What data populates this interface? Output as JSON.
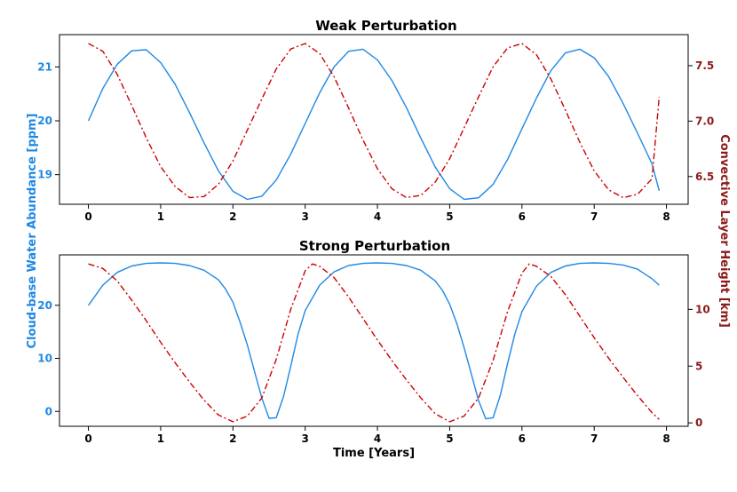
{
  "colors": {
    "left": "#1e88e5",
    "right": "#cc0000",
    "right_label": "#8b1a1a",
    "axis": "#000000"
  },
  "figure": {
    "ylabel_left": "Cloud-base Water Abundance [ppm]",
    "ylabel_right": "Convective Layer Height [km]",
    "xlabel": "Time [Years]"
  },
  "chart_data": [
    {
      "type": "line",
      "title": "Weak Perturbation",
      "xlim": [
        -0.4,
        8.3
      ],
      "x_ticks": [
        0,
        1,
        2,
        3,
        4,
        5,
        6,
        7,
        8
      ],
      "ylim_left": [
        18.45,
        21.6
      ],
      "y_ticks_left": [
        19,
        20,
        21
      ],
      "ylim_right": [
        6.25,
        7.78
      ],
      "y_ticks_right": [
        6.5,
        7.0,
        7.5
      ],
      "y_tick_labels_right": [
        "6.5",
        "7.0",
        "7.5"
      ],
      "series": [
        {
          "axis": "left",
          "style": "solid",
          "x": [
            0,
            0.2,
            0.4,
            0.6,
            0.8,
            1.0,
            1.2,
            1.4,
            1.6,
            1.8,
            2.0,
            2.2,
            2.4,
            2.6,
            2.8,
            3.0,
            3.2,
            3.4,
            3.6,
            3.8,
            4.0,
            4.2,
            4.4,
            4.6,
            4.8,
            5.0,
            5.2,
            5.4,
            5.6,
            5.8,
            6.0,
            6.2,
            6.4,
            6.6,
            6.8,
            7.0,
            7.2,
            7.4,
            7.6,
            7.8,
            7.9
          ],
          "y": [
            20.0,
            20.6,
            21.05,
            21.3,
            21.32,
            21.08,
            20.68,
            20.15,
            19.59,
            19.07,
            18.69,
            18.54,
            18.6,
            18.9,
            19.38,
            19.95,
            20.52,
            21.0,
            21.29,
            21.33,
            21.13,
            20.75,
            20.25,
            19.68,
            19.14,
            18.74,
            18.54,
            18.57,
            18.82,
            19.28,
            19.85,
            20.42,
            20.93,
            21.26,
            21.33,
            21.17,
            20.82,
            20.32,
            19.77,
            19.2,
            18.7
          ]
        },
        {
          "axis": "right",
          "style": "dashdot",
          "x": [
            0,
            0.2,
            0.4,
            0.6,
            0.8,
            1.0,
            1.2,
            1.4,
            1.6,
            1.8,
            2.0,
            2.2,
            2.4,
            2.6,
            2.8,
            3.0,
            3.2,
            3.4,
            3.6,
            3.8,
            4.0,
            4.2,
            4.4,
            4.6,
            4.8,
            5.0,
            5.2,
            5.4,
            5.6,
            5.8,
            6.0,
            6.2,
            6.4,
            6.6,
            6.8,
            7.0,
            7.2,
            7.4,
            7.6,
            7.8,
            7.9
          ],
          "y": [
            7.7,
            7.63,
            7.42,
            7.14,
            6.85,
            6.59,
            6.41,
            6.31,
            6.32,
            6.43,
            6.64,
            6.92,
            7.2,
            7.47,
            7.65,
            7.7,
            7.61,
            7.4,
            7.12,
            6.83,
            6.57,
            6.39,
            6.31,
            6.33,
            6.45,
            6.66,
            6.94,
            7.22,
            7.49,
            7.66,
            7.7,
            7.6,
            7.38,
            7.1,
            6.81,
            6.55,
            6.38,
            6.31,
            6.34,
            6.48,
            7.22
          ]
        }
      ]
    },
    {
      "type": "line",
      "title": "Strong Perturbation",
      "xlim": [
        -0.4,
        8.3
      ],
      "x_ticks": [
        0,
        1,
        2,
        3,
        4,
        5,
        6,
        7,
        8
      ],
      "ylim_left": [
        -2.8,
        29.5
      ],
      "y_ticks_left": [
        0,
        10,
        20
      ],
      "ylim_right": [
        -0.3,
        14.8
      ],
      "y_ticks_right": [
        0,
        5,
        10
      ],
      "y_tick_labels_right": [
        "0",
        "5",
        "10"
      ],
      "series": [
        {
          "axis": "left",
          "style": "solid",
          "x": [
            0,
            0.2,
            0.4,
            0.6,
            0.8,
            1.0,
            1.2,
            1.4,
            1.6,
            1.8,
            1.9,
            2.0,
            2.1,
            2.2,
            2.3,
            2.4,
            2.5,
            2.6,
            2.7,
            2.8,
            2.9,
            3.0,
            3.2,
            3.4,
            3.6,
            3.8,
            4.0,
            4.2,
            4.4,
            4.6,
            4.8,
            4.9,
            5.0,
            5.1,
            5.2,
            5.3,
            5.4,
            5.5,
            5.6,
            5.7,
            5.8,
            5.9,
            6.0,
            6.2,
            6.4,
            6.6,
            6.8,
            7.0,
            7.2,
            7.4,
            7.6,
            7.8,
            7.9
          ],
          "y": [
            20,
            23.8,
            26.2,
            27.4,
            27.9,
            28.0,
            27.9,
            27.5,
            26.6,
            24.8,
            23.0,
            20.6,
            16.8,
            12.5,
            7.5,
            2.5,
            -1.3,
            -1.2,
            2.8,
            8.5,
            14.5,
            19.0,
            23.8,
            26.3,
            27.5,
            27.9,
            28.0,
            27.9,
            27.5,
            26.6,
            24.6,
            22.8,
            20.2,
            16.5,
            12.0,
            7.0,
            2.0,
            -1.4,
            -1.2,
            3.0,
            9.0,
            14.5,
            18.8,
            23.6,
            26.2,
            27.4,
            27.9,
            28.0,
            27.9,
            27.6,
            26.8,
            25.0,
            23.8
          ]
        },
        {
          "axis": "right",
          "style": "dashdot",
          "x": [
            0,
            0.2,
            0.4,
            0.6,
            0.8,
            1.0,
            1.2,
            1.4,
            1.6,
            1.8,
            2.0,
            2.2,
            2.4,
            2.6,
            2.8,
            3.0,
            3.1,
            3.2,
            3.4,
            3.6,
            3.8,
            4.0,
            4.2,
            4.4,
            4.6,
            4.8,
            5.0,
            5.2,
            5.4,
            5.6,
            5.8,
            6.0,
            6.1,
            6.2,
            6.4,
            6.6,
            6.8,
            7.0,
            7.2,
            7.4,
            7.6,
            7.8,
            7.9
          ],
          "y": [
            14.0,
            13.6,
            12.5,
            10.8,
            9.0,
            7.1,
            5.3,
            3.6,
            2.0,
            0.7,
            0.1,
            0.6,
            2.2,
            5.6,
            10.0,
            13.4,
            14.0,
            13.8,
            12.8,
            11.1,
            9.2,
            7.3,
            5.5,
            3.8,
            2.2,
            0.8,
            0.1,
            0.6,
            2.2,
            5.5,
            9.8,
            13.2,
            14.0,
            13.8,
            12.9,
            11.3,
            9.4,
            7.5,
            5.7,
            4.0,
            2.4,
            0.9,
            0.3
          ]
        }
      ]
    }
  ]
}
